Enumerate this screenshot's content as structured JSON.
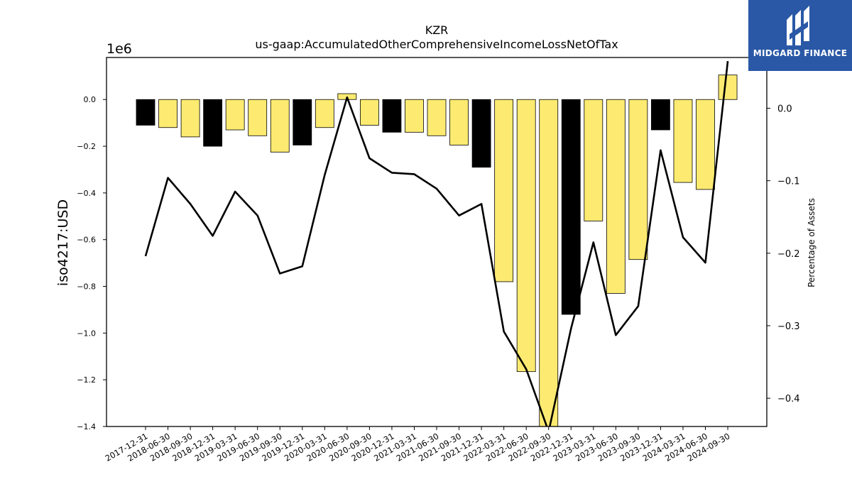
{
  "brand": {
    "name": "MIDGARD FINANCE",
    "background": "#2a58a6"
  },
  "chart_data": {
    "type": "bar",
    "title": "KZR",
    "subtitle": "us-gaap:AccumulatedOtherComprehensiveIncomeLossNetOfTax",
    "ylabel": "iso4217:USD",
    "ylabel_right": "Percentage of Assets",
    "y_multiplier_label": "1e6",
    "ylim": [
      -1.4,
      0.18
    ],
    "y2lim": [
      -0.439,
      0.07
    ],
    "yticks": [
      "-1.4",
      "-1.2",
      "-1.0",
      "-0.8",
      "-0.6",
      "-0.4",
      "-0.2",
      "0.0"
    ],
    "y2ticks": [
      "-0.4",
      "-0.3",
      "-0.2",
      "-0.1",
      "0.0"
    ],
    "categories": [
      "2017-12-31",
      "2018-06-30",
      "2018-09-30",
      "2018-12-31",
      "2019-03-31",
      "2019-06-30",
      "2019-09-30",
      "2019-12-31",
      "2020-03-31",
      "2020-06-30",
      "2020-09-30",
      "2020-12-31",
      "2021-03-31",
      "2021-06-30",
      "2021-09-30",
      "2021-12-31",
      "2022-03-31",
      "2022-06-30",
      "2022-09-30",
      "2022-12-31",
      "2023-03-31",
      "2023-06-30",
      "2023-09-30",
      "2023-12-31",
      "2024-03-31",
      "2024-06-30",
      "2024-09-30"
    ],
    "series": [
      {
        "type": "bar",
        "values": [
          -0.11,
          -0.12,
          -0.16,
          -0.2,
          -0.13,
          -0.155,
          -0.225,
          -0.195,
          -0.12,
          0.025,
          -0.11,
          -0.14,
          -0.14,
          -0.155,
          -0.195,
          -0.29,
          -0.78,
          -1.165,
          -1.43,
          -0.92,
          -0.52,
          -0.83,
          -0.685,
          -0.13,
          -0.355,
          -0.385,
          0.105
        ],
        "bar_colors": [
          "#000000",
          "#fdeb71",
          "#fdeb71",
          "#000000",
          "#fdeb71",
          "#fdeb71",
          "#fdeb71",
          "#000000",
          "#fdeb71",
          "#fdeb71",
          "#fdeb71",
          "#000000",
          "#fdeb71",
          "#fdeb71",
          "#fdeb71",
          "#000000",
          "#fdeb71",
          "#fdeb71",
          "#fdeb71",
          "#000000",
          "#fdeb71",
          "#fdeb71",
          "#fdeb71",
          "#000000",
          "#fdeb71",
          "#fdeb71",
          "#fdeb71"
        ]
      },
      {
        "type": "line",
        "axis": "right",
        "color": "#000000",
        "values": [
          -0.204,
          -0.096,
          -0.132,
          -0.176,
          -0.115,
          -0.148,
          -0.228,
          -0.218,
          -0.092,
          0.015,
          -0.069,
          -0.089,
          -0.091,
          -0.111,
          -0.148,
          -0.132,
          -0.308,
          -0.36,
          -0.446,
          -0.304,
          -0.185,
          -0.313,
          -0.273,
          -0.058,
          -0.178,
          -0.213,
          0.065
        ]
      }
    ],
    "grid": false,
    "legend": "none"
  }
}
